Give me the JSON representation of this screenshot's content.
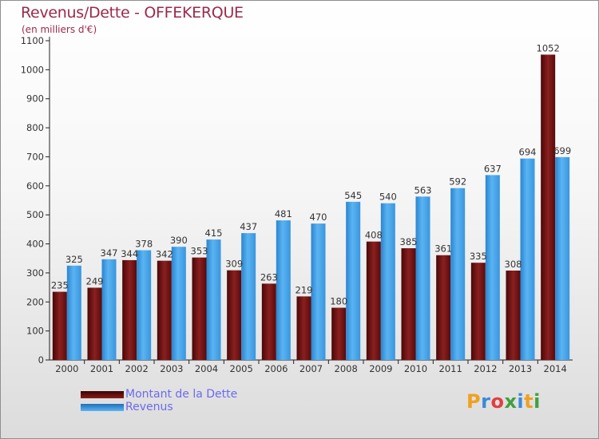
{
  "header": {
    "title": "Revenus/Dette - OFFEKERQUE",
    "subtitle": "(en milliers d'€)"
  },
  "legend": {
    "items": [
      {
        "label": "Montant de la Dette",
        "color": "#7a1414"
      },
      {
        "label": "Revenus",
        "color": "#3b9de6"
      }
    ]
  },
  "logo": {
    "letters": [
      "P",
      "r",
      "o",
      "x",
      "i",
      "t",
      "i"
    ],
    "colors": [
      "#f0a020",
      "#3a8ad8",
      "#e04040",
      "#40a040",
      "#3a8ad8",
      "#f0a020",
      "#40a040"
    ]
  },
  "chart_data": {
    "type": "bar",
    "categories": [
      "2000",
      "2001",
      "2002",
      "2003",
      "2004",
      "2005",
      "2006",
      "2007",
      "2008",
      "2009",
      "2010",
      "2011",
      "2012",
      "2013",
      "2014"
    ],
    "series": [
      {
        "name": "Montant de la Dette",
        "color": "#7a1414",
        "values": [
          235,
          249,
          344,
          342,
          353,
          309,
          263,
          219,
          180,
          408,
          385,
          361,
          335,
          308,
          1052
        ]
      },
      {
        "name": "Revenus",
        "color": "#3b9de6",
        "values": [
          325,
          347,
          378,
          390,
          415,
          437,
          481,
          470,
          545,
          540,
          563,
          592,
          637,
          694,
          699
        ]
      }
    ],
    "yticks": [
      0,
      100,
      200,
      300,
      400,
      500,
      600,
      700,
      800,
      900,
      1000,
      1100
    ],
    "ylim": [
      0,
      1100
    ],
    "grid": false,
    "legend_position": "bottom-left",
    "xlabel": "",
    "ylabel": ""
  }
}
